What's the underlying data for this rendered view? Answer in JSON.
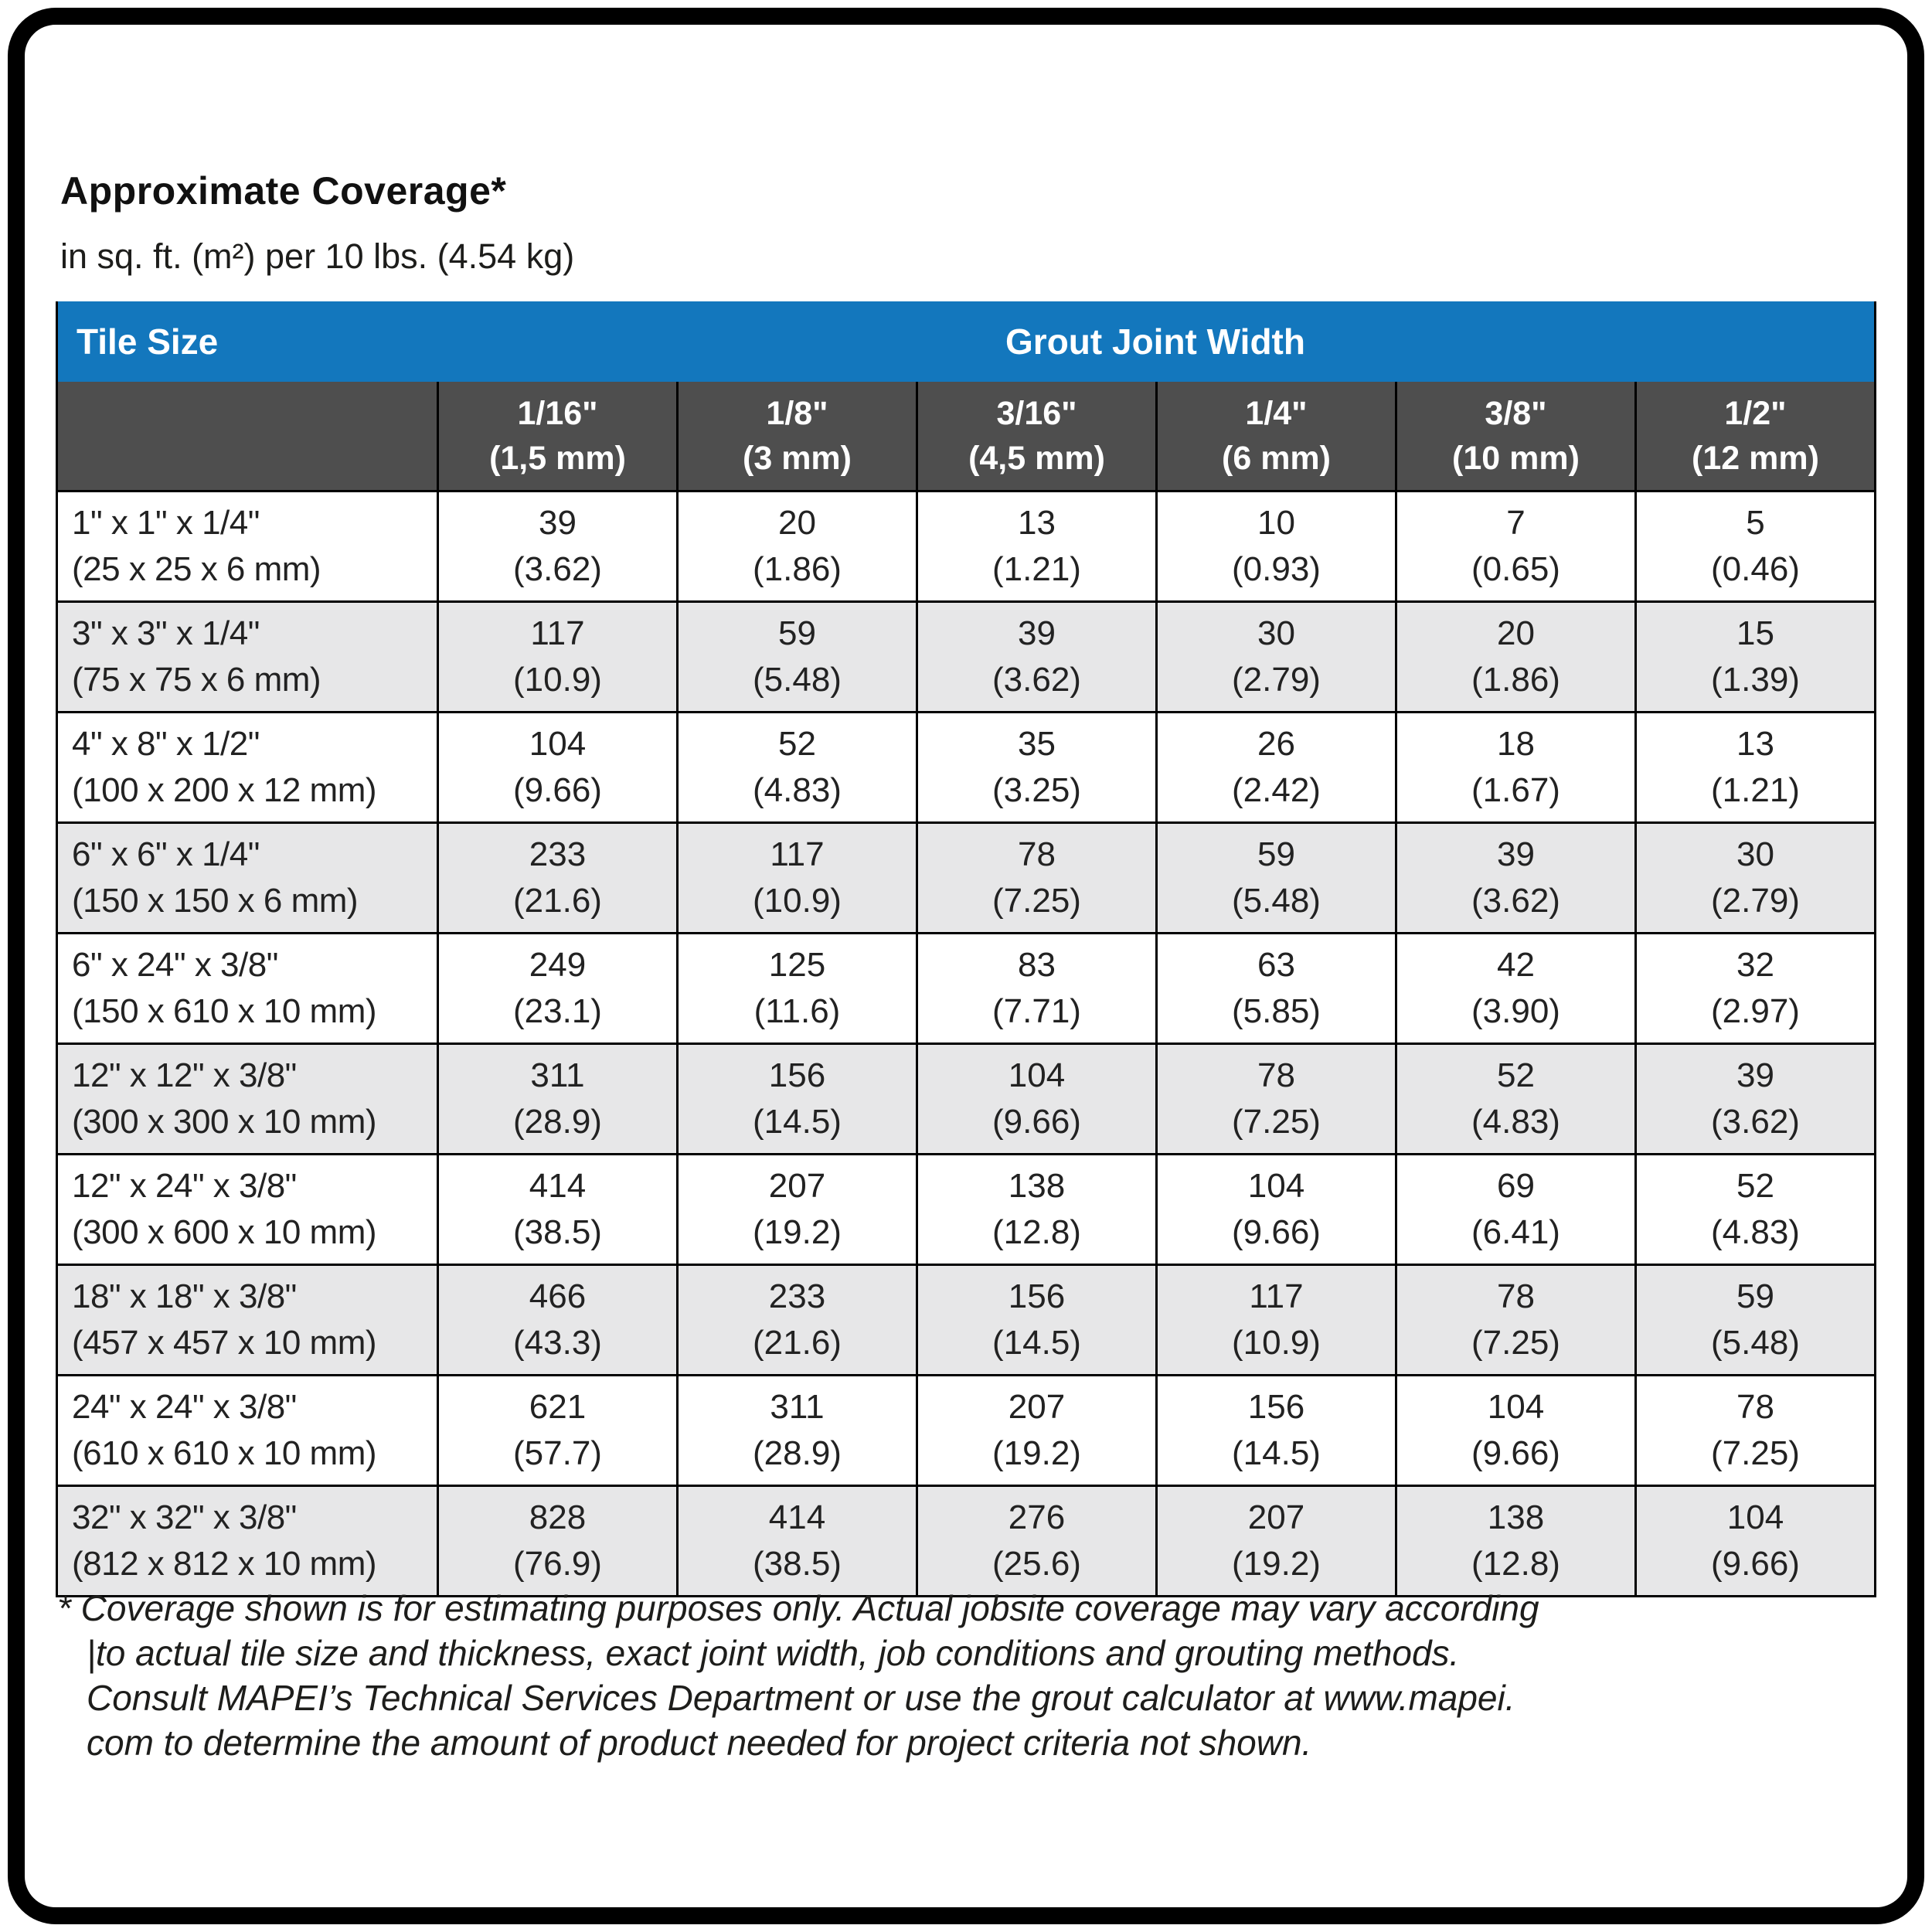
{
  "page": {
    "title": "Approximate Coverage*",
    "subtitle": "in sq. ft. (m²) per 10 lbs. (4.54 kg)"
  },
  "colors": {
    "header_blue": "#1377BD",
    "header_dark_gray": "#4E4E4E",
    "row_alt_gray": "#E7E7E8",
    "border_black": "#000000"
  },
  "table": {
    "corner_header": "Tile Size",
    "group_header": "Grout Joint Width",
    "columns": [
      {
        "width_in": "1/16\"",
        "width_mm": "(1,5 mm)"
      },
      {
        "width_in": "1/8\"",
        "width_mm": "(3 mm)"
      },
      {
        "width_in": "3/16\"",
        "width_mm": "(4,5 mm)"
      },
      {
        "width_in": "1/4\"",
        "width_mm": "(6 mm)"
      },
      {
        "width_in": "3/8\"",
        "width_mm": "(10 mm)"
      },
      {
        "width_in": "1/2\"",
        "width_mm": "(12 mm)"
      }
    ],
    "rows": [
      {
        "size": "1\" x 1\" x 1/4\"",
        "metric": "(25 x 25 x 6 mm)",
        "values": [
          [
            "39",
            "(3.62)"
          ],
          [
            "20",
            "(1.86)"
          ],
          [
            "13",
            "(1.21)"
          ],
          [
            "10",
            "(0.93)"
          ],
          [
            "7",
            "(0.65)"
          ],
          [
            "5",
            "(0.46)"
          ]
        ]
      },
      {
        "size": "3\" x 3\" x 1/4\"",
        "metric": "(75 x 75 x 6 mm)",
        "values": [
          [
            "117",
            "(10.9)"
          ],
          [
            "59",
            "(5.48)"
          ],
          [
            "39",
            "(3.62)"
          ],
          [
            "30",
            "(2.79)"
          ],
          [
            "20",
            "(1.86)"
          ],
          [
            "15",
            "(1.39)"
          ]
        ]
      },
      {
        "size": "4\" x 8\" x 1/2\"",
        "metric": "(100 x 200 x 12 mm)",
        "values": [
          [
            "104",
            "(9.66)"
          ],
          [
            "52",
            "(4.83)"
          ],
          [
            "35",
            "(3.25)"
          ],
          [
            "26",
            "(2.42)"
          ],
          [
            "18",
            "(1.67)"
          ],
          [
            "13",
            "(1.21)"
          ]
        ]
      },
      {
        "size": "6\" x 6\" x 1/4\"",
        "metric": "(150 x 150 x 6 mm)",
        "values": [
          [
            "233",
            "(21.6)"
          ],
          [
            "117",
            "(10.9)"
          ],
          [
            "78",
            "(7.25)"
          ],
          [
            "59",
            "(5.48)"
          ],
          [
            "39",
            "(3.62)"
          ],
          [
            "30",
            "(2.79)"
          ]
        ]
      },
      {
        "size": "6\" x 24\" x 3/8\"",
        "metric": "(150 x 610 x 10 mm)",
        "values": [
          [
            "249",
            "(23.1)"
          ],
          [
            "125",
            "(11.6)"
          ],
          [
            "83",
            "(7.71)"
          ],
          [
            "63",
            "(5.85)"
          ],
          [
            "42",
            "(3.90)"
          ],
          [
            "32",
            "(2.97)"
          ]
        ]
      },
      {
        "size": "12\" x 12\" x 3/8\"",
        "metric": "(300 x 300 x 10 mm)",
        "values": [
          [
            "311",
            "(28.9)"
          ],
          [
            "156",
            "(14.5)"
          ],
          [
            "104",
            "(9.66)"
          ],
          [
            "78",
            "(7.25)"
          ],
          [
            "52",
            "(4.83)"
          ],
          [
            "39",
            "(3.62)"
          ]
        ]
      },
      {
        "size": "12\" x 24\" x 3/8\"",
        "metric": "(300 x 600 x 10 mm)",
        "values": [
          [
            "414",
            "(38.5)"
          ],
          [
            "207",
            "(19.2)"
          ],
          [
            "138",
            "(12.8)"
          ],
          [
            "104",
            "(9.66)"
          ],
          [
            "69",
            "(6.41)"
          ],
          [
            "52",
            "(4.83)"
          ]
        ]
      },
      {
        "size": "18\" x 18\" x 3/8\"",
        "metric": "(457 x 457 x 10 mm)",
        "values": [
          [
            "466",
            "(43.3)"
          ],
          [
            "233",
            "(21.6)"
          ],
          [
            "156",
            "(14.5)"
          ],
          [
            "117",
            "(10.9)"
          ],
          [
            "78",
            "(7.25)"
          ],
          [
            "59",
            "(5.48)"
          ]
        ]
      },
      {
        "size": "24\" x 24\" x 3/8\"",
        "metric": "(610 x 610 x 10 mm)",
        "values": [
          [
            "621",
            "(57.7)"
          ],
          [
            "311",
            "(28.9)"
          ],
          [
            "207",
            "(19.2)"
          ],
          [
            "156",
            "(14.5)"
          ],
          [
            "104",
            "(9.66)"
          ],
          [
            "78",
            "(7.25)"
          ]
        ]
      },
      {
        "size": "32\" x 32\" x 3/8\"",
        "metric": "(812 x 812 x 10 mm)",
        "values": [
          [
            "828",
            "(76.9)"
          ],
          [
            "414",
            "(38.5)"
          ],
          [
            "276",
            "(25.6)"
          ],
          [
            "207",
            "(19.2)"
          ],
          [
            "138",
            "(12.8)"
          ],
          [
            "104",
            "(9.66)"
          ]
        ]
      }
    ]
  },
  "footnote": {
    "lines": [
      "* Coverage shown is for estimating purposes only. Actual jobsite coverage may vary according",
      "|to actual tile size and thickness, exact joint width, job conditions and grouting methods.",
      "Consult MAPEI’s Technical Services Department or use the grout calculator at www.mapei.",
      "com to determine the amount of product needed for project criteria not shown."
    ]
  }
}
